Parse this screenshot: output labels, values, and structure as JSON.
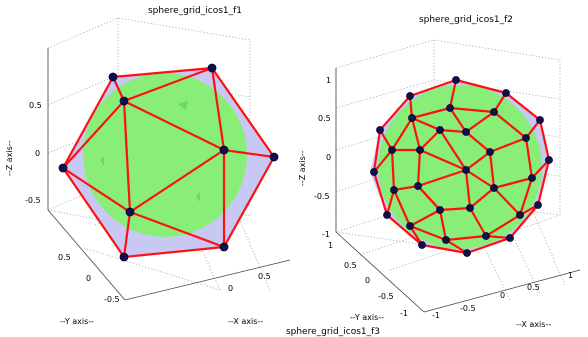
{
  "figure1": {
    "title": "sphere_grid_icos1_f1",
    "z_ticks": [
      "0.5",
      "0",
      "-0.5"
    ],
    "y_ticks": [
      "0.5",
      "0",
      "-0.5"
    ],
    "x_ticks": [
      "0",
      "0.5"
    ],
    "z_label": "--Z axis--",
    "y_label": "--Y axis--",
    "x_label": "--X axis--"
  },
  "figure2": {
    "title": "sphere_grid_icos1_f2",
    "z_ticks": [
      "1",
      "0.5",
      "0",
      "-0.5",
      "-1"
    ],
    "y_ticks": [
      "1",
      "0.5",
      "0",
      "-0.5",
      "-1"
    ],
    "x_ticks": [
      "-1",
      "-0.5",
      "0",
      "0.5",
      "1"
    ],
    "z_label": "--Z axis--",
    "y_label": "--Y axis--",
    "x_label": "--X axis--"
  },
  "figure3": {
    "title": "sphere_grid_icos1_f3"
  },
  "colors": {
    "sphere": "#88ee77",
    "hull": "#c8c8f4",
    "edges": "#ff1010",
    "vertices": "#10104a"
  }
}
